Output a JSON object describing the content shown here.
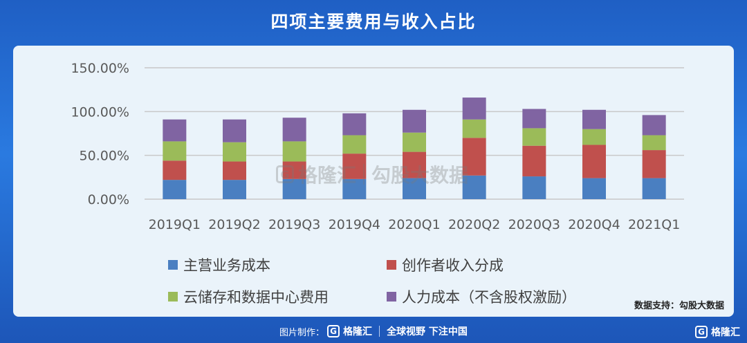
{
  "title": "四项主要费用与收入占比",
  "chart_data": {
    "type": "bar",
    "stacked": true,
    "categories": [
      "2019Q1",
      "2019Q2",
      "2019Q3",
      "2019Q4",
      "2020Q1",
      "2020Q2",
      "2020Q3",
      "2020Q4",
      "2021Q1"
    ],
    "series": [
      {
        "name": "主营业务成本",
        "color": "#4a7fc1",
        "values": [
          22,
          22,
          23,
          23,
          24,
          27,
          26,
          24,
          24
        ]
      },
      {
        "name": "创作者收入分成",
        "color": "#c0504d",
        "values": [
          22,
          21,
          20,
          29,
          30,
          43,
          35,
          38,
          32
        ]
      },
      {
        "name": "云储存和数据中心费用",
        "color": "#9bbb59",
        "values": [
          22,
          22,
          23,
          21,
          22,
          21,
          20,
          18,
          17
        ]
      },
      {
        "name": "人力成本（不含股权激励）",
        "color": "#8064a2",
        "values": [
          25,
          26,
          27,
          25,
          26,
          25,
          22,
          22,
          23
        ]
      }
    ],
    "ylim": [
      0,
      150
    ],
    "yticks": [
      "0.00%",
      "50.00%",
      "100.00%",
      "150.00%"
    ],
    "ytick_values": [
      0,
      50,
      100,
      150
    ],
    "grid": true,
    "legend_placement": "bottom"
  },
  "watermark": {
    "brand": "格隆汇",
    "text": "勾股大数据"
  },
  "source": "数据支持：勾股大数据",
  "footer": {
    "made_by": "图片制作：",
    "brand": "格隆汇",
    "slogan": "全球视野 下注中国"
  },
  "corner_brand": "格隆汇"
}
